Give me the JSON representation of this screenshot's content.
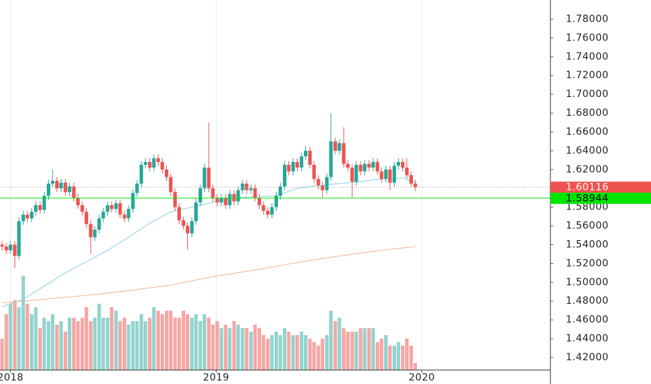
{
  "chart_data": {
    "type": "candlestick",
    "x": [
      2017.959,
      2017.98,
      2018.0,
      2018.021,
      2018.041,
      2018.062,
      2018.082,
      2018.103,
      2018.123,
      2018.144,
      2018.164,
      2018.185,
      2018.205,
      2018.226,
      2018.246,
      2018.267,
      2018.287,
      2018.308,
      2018.328,
      2018.349,
      2018.369,
      2018.39,
      2018.41,
      2018.431,
      2018.451,
      2018.472,
      2018.492,
      2018.513,
      2018.533,
      2018.554,
      2018.574,
      2018.595,
      2018.615,
      2018.636,
      2018.656,
      2018.677,
      2018.697,
      2018.718,
      2018.738,
      2018.759,
      2018.779,
      2018.8,
      2018.82,
      2018.841,
      2018.861,
      2018.882,
      2018.902,
      2018.923,
      2018.943,
      2018.964,
      2018.984,
      2019.005,
      2019.025,
      2019.046,
      2019.066,
      2019.087,
      2019.107,
      2019.128,
      2019.148,
      2019.169,
      2019.189,
      2019.21,
      2019.23,
      2019.251,
      2019.271,
      2019.292,
      2019.312,
      2019.333,
      2019.353,
      2019.374,
      2019.394,
      2019.415,
      2019.435,
      2019.456,
      2019.476,
      2019.497,
      2019.517,
      2019.538,
      2019.558,
      2019.579,
      2019.599,
      2019.62,
      2019.64,
      2019.661,
      2019.681,
      2019.702,
      2019.722,
      2019.743,
      2019.763,
      2019.784,
      2019.804,
      2019.825,
      2019.845,
      2019.866,
      2019.886,
      2019.907,
      2019.927,
      2019.948,
      2019.968
    ],
    "open": [
      1.54,
      1.538,
      1.534,
      1.54,
      1.528,
      1.565,
      1.572,
      1.568,
      1.575,
      1.582,
      1.577,
      1.592,
      1.605,
      1.608,
      1.6,
      1.606,
      1.596,
      1.602,
      1.59,
      1.582,
      1.575,
      1.562,
      1.548,
      1.556,
      1.568,
      1.575,
      1.582,
      1.578,
      1.584,
      1.572,
      1.568,
      1.578,
      1.595,
      1.605,
      1.625,
      1.628,
      1.622,
      1.632,
      1.628,
      1.62,
      1.612,
      1.596,
      1.58,
      1.566,
      1.56,
      1.552,
      1.565,
      1.585,
      1.6,
      1.622,
      1.6,
      1.59,
      1.585,
      1.59,
      1.582,
      1.594,
      1.586,
      1.598,
      1.605,
      1.598,
      1.6,
      1.59,
      1.582,
      1.576,
      1.572,
      1.58,
      1.592,
      1.602,
      1.625,
      1.618,
      1.628,
      1.622,
      1.634,
      1.64,
      1.625,
      1.61,
      1.603,
      1.598,
      1.612,
      1.65,
      1.64,
      1.648,
      1.626,
      1.622,
      1.607,
      1.625,
      1.618,
      1.626,
      1.622,
      1.628,
      1.618,
      1.61,
      1.62,
      1.606,
      1.624,
      1.628,
      1.622,
      1.614,
      1.605
    ],
    "high": [
      1.544,
      1.542,
      1.544,
      1.544,
      1.569,
      1.576,
      1.576,
      1.579,
      1.586,
      1.586,
      1.596,
      1.609,
      1.62,
      1.612,
      1.61,
      1.61,
      1.606,
      1.606,
      1.594,
      1.586,
      1.579,
      1.566,
      1.56,
      1.572,
      1.579,
      1.586,
      1.586,
      1.588,
      1.588,
      1.576,
      1.582,
      1.599,
      1.609,
      1.629,
      1.632,
      1.632,
      1.636,
      1.636,
      1.632,
      1.624,
      1.616,
      1.6,
      1.584,
      1.57,
      1.564,
      1.569,
      1.589,
      1.604,
      1.626,
      1.67,
      1.604,
      1.594,
      1.594,
      1.594,
      1.598,
      1.598,
      1.602,
      1.609,
      1.609,
      1.604,
      1.604,
      1.594,
      1.586,
      1.58,
      1.584,
      1.596,
      1.606,
      1.629,
      1.629,
      1.632,
      1.632,
      1.638,
      1.645,
      1.644,
      1.629,
      1.614,
      1.607,
      1.616,
      1.68,
      1.654,
      1.652,
      1.665,
      1.63,
      1.626,
      1.629,
      1.629,
      1.63,
      1.63,
      1.632,
      1.632,
      1.622,
      1.624,
      1.624,
      1.628,
      1.632,
      1.632,
      1.632,
      1.618,
      1.609
    ],
    "low": [
      1.534,
      1.53,
      1.53,
      1.515,
      1.524,
      1.561,
      1.564,
      1.564,
      1.571,
      1.573,
      1.573,
      1.588,
      1.601,
      1.596,
      1.596,
      1.592,
      1.592,
      1.586,
      1.578,
      1.571,
      1.558,
      1.53,
      1.544,
      1.552,
      1.564,
      1.571,
      1.574,
      1.574,
      1.568,
      1.564,
      1.564,
      1.574,
      1.591,
      1.601,
      1.621,
      1.618,
      1.618,
      1.624,
      1.616,
      1.608,
      1.592,
      1.576,
      1.562,
      1.556,
      1.535,
      1.548,
      1.561,
      1.581,
      1.596,
      1.596,
      1.586,
      1.581,
      1.581,
      1.578,
      1.578,
      1.582,
      1.582,
      1.594,
      1.594,
      1.594,
      1.586,
      1.578,
      1.572,
      1.568,
      1.568,
      1.576,
      1.588,
      1.598,
      1.614,
      1.614,
      1.618,
      1.618,
      1.63,
      1.621,
      1.606,
      1.599,
      1.59,
      1.594,
      1.608,
      1.636,
      1.636,
      1.622,
      1.618,
      1.59,
      1.603,
      1.614,
      1.614,
      1.618,
      1.618,
      1.614,
      1.606,
      1.606,
      1.598,
      1.602,
      1.62,
      1.618,
      1.61,
      1.601,
      1.597
    ],
    "close": [
      1.538,
      1.534,
      1.54,
      1.528,
      1.565,
      1.572,
      1.568,
      1.575,
      1.582,
      1.577,
      1.592,
      1.605,
      1.608,
      1.6,
      1.606,
      1.596,
      1.602,
      1.59,
      1.582,
      1.575,
      1.562,
      1.548,
      1.556,
      1.568,
      1.575,
      1.582,
      1.578,
      1.584,
      1.572,
      1.568,
      1.578,
      1.595,
      1.605,
      1.625,
      1.628,
      1.622,
      1.632,
      1.628,
      1.62,
      1.612,
      1.596,
      1.58,
      1.566,
      1.56,
      1.552,
      1.565,
      1.585,
      1.6,
      1.622,
      1.6,
      1.59,
      1.585,
      1.59,
      1.582,
      1.594,
      1.586,
      1.598,
      1.605,
      1.598,
      1.6,
      1.59,
      1.582,
      1.576,
      1.572,
      1.58,
      1.592,
      1.602,
      1.625,
      1.618,
      1.628,
      1.622,
      1.634,
      1.64,
      1.625,
      1.61,
      1.603,
      1.598,
      1.612,
      1.65,
      1.64,
      1.648,
      1.626,
      1.622,
      1.607,
      1.625,
      1.618,
      1.626,
      1.622,
      1.628,
      1.618,
      1.61,
      1.62,
      1.606,
      1.624,
      1.628,
      1.622,
      1.614,
      1.605,
      1.60116
    ],
    "volume": [
      45,
      80,
      95,
      100,
      90,
      135,
      95,
      80,
      90,
      60,
      75,
      70,
      80,
      65,
      70,
      55,
      75,
      75,
      70,
      75,
      90,
      70,
      75,
      95,
      75,
      75,
      90,
      85,
      70,
      75,
      65,
      70,
      70,
      80,
      70,
      75,
      90,
      85,
      80,
      85,
      85,
      75,
      75,
      85,
      80,
      75,
      80,
      70,
      80,
      75,
      65,
      70,
      60,
      65,
      60,
      70,
      65,
      60,
      60,
      55,
      65,
      60,
      50,
      45,
      50,
      55,
      50,
      60,
      55,
      50,
      50,
      55,
      50,
      45,
      40,
      35,
      45,
      50,
      85,
      70,
      75,
      60,
      55,
      55,
      55,
      60,
      60,
      60,
      60,
      40,
      45,
      50,
      35,
      35,
      40,
      35,
      45,
      35,
      10
    ],
    "up_color": "#26a69a",
    "down_color": "#ef5350",
    "volume_up_color": "#93d3cd",
    "volume_down_color": "#f6a6a5",
    "moving_averages": [
      {
        "color": "#85cfe0",
        "x": [
          2017.959,
          2018.062,
          2018.164,
          2018.267,
          2018.369,
          2018.472,
          2018.574,
          2018.677,
          2018.779,
          2018.882,
          2018.984,
          2019.087,
          2019.189,
          2019.292,
          2019.394,
          2019.497,
          2019.599,
          2019.702,
          2019.804,
          2019.907,
          2019.968
        ],
        "values": [
          1.474,
          1.482,
          1.496,
          1.51,
          1.522,
          1.534,
          1.548,
          1.563,
          1.575,
          1.58,
          1.585,
          1.59,
          1.591,
          1.592,
          1.6,
          1.603,
          1.605,
          1.607,
          1.61,
          1.611,
          1.606
        ]
      },
      {
        "color": "#f6b391",
        "x": [
          2017.959,
          2018.164,
          2018.369,
          2018.574,
          2018.779,
          2018.984,
          2019.189,
          2019.394,
          2019.599,
          2019.804,
          2019.968
        ],
        "values": [
          1.478,
          1.482,
          1.486,
          1.491,
          1.497,
          1.506,
          1.513,
          1.521,
          1.528,
          1.534,
          1.538
        ]
      }
    ],
    "xlim": [
      2017.949,
      2020.625
    ],
    "xticks": [
      2018,
      2019,
      2020
    ],
    "ylim": [
      1.4066,
      1.8004
    ],
    "yticks": [
      {
        "value": 1.42,
        "label": "1.42000"
      },
      {
        "value": 1.44,
        "label": "1.44000"
      },
      {
        "value": 1.46,
        "label": "1.46000"
      },
      {
        "value": 1.48,
        "label": "1.48000"
      },
      {
        "value": 1.5,
        "label": "1.50000"
      },
      {
        "value": 1.52,
        "label": "1.52000"
      },
      {
        "value": 1.54,
        "label": "1.54000"
      },
      {
        "value": 1.56,
        "label": "1.56000"
      },
      {
        "value": 1.58,
        "label": "1.58000"
      },
      {
        "value": 1.6,
        "label": "1.60000"
      },
      {
        "value": 1.62,
        "label": "1.62000"
      },
      {
        "value": 1.64,
        "label": "1.64000"
      },
      {
        "value": 1.66,
        "label": "1.66000"
      },
      {
        "value": 1.68,
        "label": "1.68000"
      },
      {
        "value": 1.7,
        "label": "1.70000"
      },
      {
        "value": 1.72,
        "label": "1.72000"
      },
      {
        "value": 1.74,
        "label": "1.74000"
      },
      {
        "value": 1.76,
        "label": "1.76000"
      },
      {
        "value": 1.78,
        "label": "1.78000"
      }
    ],
    "last_price": {
      "value": 1.60116,
      "label": "1.60116",
      "color": "#ef5350"
    },
    "horizontal_line": {
      "value": 1.58944,
      "label": "1.58944",
      "color": "#00e600"
    }
  }
}
